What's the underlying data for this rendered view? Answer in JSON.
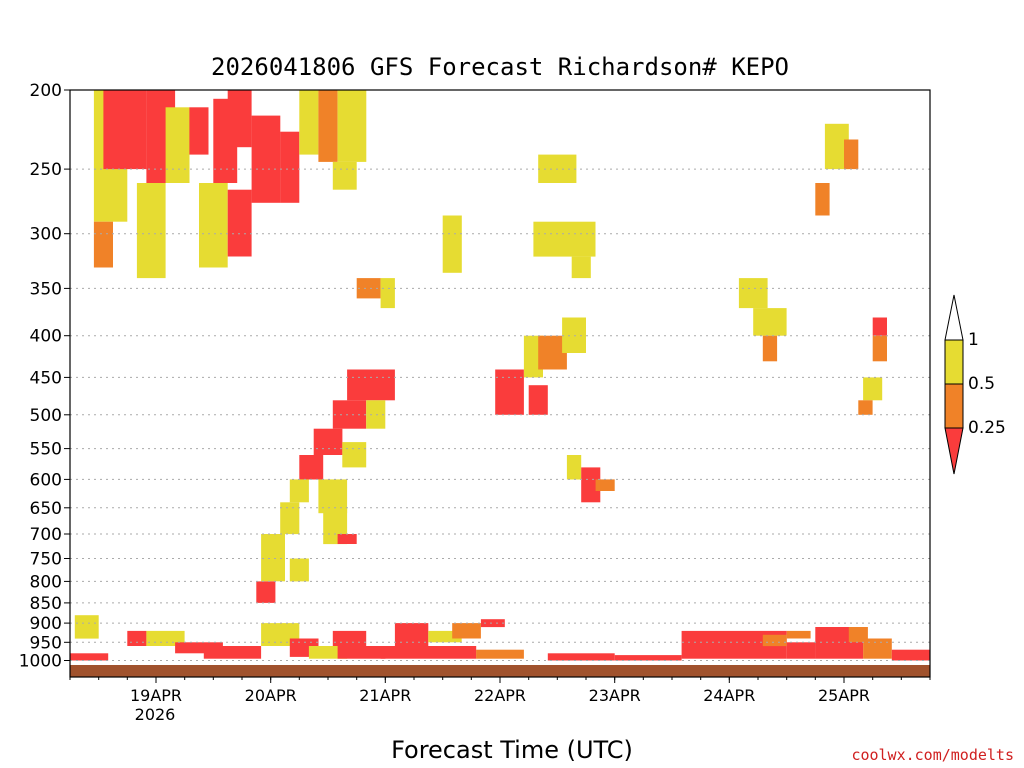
{
  "chart_data": {
    "type": "heatmap",
    "title": "2026041806 GFS Forecast Richardson# KEPO",
    "xlabel": "Forecast Time (UTC)",
    "ylabel": "",
    "x_ticks": [
      "19APR",
      "20APR",
      "21APR",
      "22APR",
      "23APR",
      "24APR",
      "25APR"
    ],
    "x_tick_hours": [
      18,
      42,
      66,
      90,
      114,
      138,
      162
    ],
    "x_year_label": "2026",
    "x_range_hours": [
      0,
      180
    ],
    "y_axis": "pressure (hPa), top down",
    "y_ticks": [
      200,
      250,
      300,
      350,
      400,
      450,
      500,
      550,
      600,
      650,
      700,
      750,
      800,
      850,
      900,
      950,
      1000
    ],
    "y_range": [
      200,
      1010
    ],
    "grid": "dotted horizontal at pressure levels",
    "colorbar": {
      "position": "right",
      "labels": [
        "1",
        "0.5",
        "0.25"
      ],
      "bins": [
        {
          "range": "0.5-1",
          "color": "#e6dc32"
        },
        {
          "range": "0.25-0.5",
          "color": "#f08228"
        },
        {
          "range": "<0.25",
          "color": "#fa3c3c"
        }
      ]
    },
    "colors": {
      "yellow": "#e6dc32",
      "orange": "#f08228",
      "red": "#fa3c3c",
      "ground": "#a0522d"
    },
    "cells": [
      {
        "t0": 5,
        "t1": 12,
        "p0": 200,
        "p1": 290,
        "c": "yellow"
      },
      {
        "t0": 5,
        "t1": 9,
        "p0": 290,
        "p1": 330,
        "c": "orange"
      },
      {
        "t0": 7,
        "t1": 16,
        "p0": 200,
        "p1": 250,
        "c": "red"
      },
      {
        "t0": 16,
        "t1": 22,
        "p0": 200,
        "p1": 260,
        "c": "red"
      },
      {
        "t0": 14,
        "t1": 20,
        "p0": 260,
        "p1": 340,
        "c": "yellow"
      },
      {
        "t0": 20,
        "t1": 25,
        "p0": 210,
        "p1": 260,
        "c": "yellow"
      },
      {
        "t0": 25,
        "t1": 29,
        "p0": 210,
        "p1": 240,
        "c": "red"
      },
      {
        "t0": 30,
        "t1": 35,
        "p0": 205,
        "p1": 260,
        "c": "red"
      },
      {
        "t0": 27,
        "t1": 33,
        "p0": 260,
        "p1": 330,
        "c": "yellow"
      },
      {
        "t0": 33,
        "t1": 38,
        "p0": 200,
        "p1": 235,
        "c": "red"
      },
      {
        "t0": 33,
        "t1": 38,
        "p0": 265,
        "p1": 320,
        "c": "red"
      },
      {
        "t0": 38,
        "t1": 44,
        "p0": 215,
        "p1": 275,
        "c": "red"
      },
      {
        "t0": 44,
        "t1": 48,
        "p0": 225,
        "p1": 275,
        "c": "red"
      },
      {
        "t0": 48,
        "t1": 52,
        "p0": 200,
        "p1": 240,
        "c": "yellow"
      },
      {
        "t0": 52,
        "t1": 56,
        "p0": 200,
        "p1": 245,
        "c": "orange"
      },
      {
        "t0": 56,
        "t1": 62,
        "p0": 200,
        "p1": 245,
        "c": "yellow"
      },
      {
        "t0": 55,
        "t1": 60,
        "p0": 245,
        "p1": 265,
        "c": "yellow"
      },
      {
        "t0": 78,
        "t1": 82,
        "p0": 285,
        "p1": 335,
        "c": "yellow"
      },
      {
        "t0": 98,
        "t1": 106,
        "p0": 240,
        "p1": 260,
        "c": "yellow"
      },
      {
        "t0": 97,
        "t1": 110,
        "p0": 290,
        "p1": 320,
        "c": "yellow"
      },
      {
        "t0": 105,
        "t1": 109,
        "p0": 320,
        "p1": 340,
        "c": "yellow"
      },
      {
        "t0": 60,
        "t1": 65,
        "p0": 340,
        "p1": 360,
        "c": "orange"
      },
      {
        "t0": 65,
        "t1": 68,
        "p0": 340,
        "p1": 370,
        "c": "yellow"
      },
      {
        "t0": 140,
        "t1": 146,
        "p0": 340,
        "p1": 370,
        "c": "yellow"
      },
      {
        "t0": 143,
        "t1": 150,
        "p0": 370,
        "p1": 400,
        "c": "yellow"
      },
      {
        "t0": 145,
        "t1": 148,
        "p0": 400,
        "p1": 430,
        "c": "orange"
      },
      {
        "t0": 158,
        "t1": 163,
        "p0": 220,
        "p1": 250,
        "c": "yellow"
      },
      {
        "t0": 162,
        "t1": 165,
        "p0": 230,
        "p1": 250,
        "c": "orange"
      },
      {
        "t0": 156,
        "t1": 159,
        "p0": 260,
        "p1": 285,
        "c": "orange"
      },
      {
        "t0": 168,
        "t1": 171,
        "p0": 380,
        "p1": 400,
        "c": "red"
      },
      {
        "t0": 168,
        "t1": 171,
        "p0": 400,
        "p1": 430,
        "c": "orange"
      },
      {
        "t0": 166,
        "t1": 170,
        "p0": 450,
        "p1": 480,
        "c": "yellow"
      },
      {
        "t0": 165,
        "t1": 168,
        "p0": 480,
        "p1": 500,
        "c": "orange"
      },
      {
        "t0": 58,
        "t1": 68,
        "p0": 440,
        "p1": 480,
        "c": "red"
      },
      {
        "t0": 55,
        "t1": 62,
        "p0": 480,
        "p1": 520,
        "c": "red"
      },
      {
        "t0": 62,
        "t1": 66,
        "p0": 480,
        "p1": 520,
        "c": "yellow"
      },
      {
        "t0": 51,
        "t1": 57,
        "p0": 520,
        "p1": 560,
        "c": "red"
      },
      {
        "t0": 57,
        "t1": 62,
        "p0": 540,
        "p1": 580,
        "c": "yellow"
      },
      {
        "t0": 48,
        "t1": 53,
        "p0": 560,
        "p1": 600,
        "c": "red"
      },
      {
        "t0": 46,
        "t1": 50,
        "p0": 600,
        "p1": 640,
        "c": "yellow"
      },
      {
        "t0": 52,
        "t1": 58,
        "p0": 600,
        "p1": 660,
        "c": "yellow"
      },
      {
        "t0": 44,
        "t1": 48,
        "p0": 640,
        "p1": 700,
        "c": "yellow"
      },
      {
        "t0": 40,
        "t1": 45,
        "p0": 700,
        "p1": 800,
        "c": "yellow"
      },
      {
        "t0": 39,
        "t1": 43,
        "p0": 800,
        "p1": 850,
        "c": "red"
      },
      {
        "t0": 46,
        "t1": 50,
        "p0": 750,
        "p1": 800,
        "c": "yellow"
      },
      {
        "t0": 53,
        "t1": 58,
        "p0": 650,
        "p1": 720,
        "c": "yellow"
      },
      {
        "t0": 56,
        "t1": 60,
        "p0": 700,
        "p1": 720,
        "c": "red"
      },
      {
        "t0": 89,
        "t1": 95,
        "p0": 440,
        "p1": 500,
        "c": "red"
      },
      {
        "t0": 95,
        "t1": 99,
        "p0": 400,
        "p1": 450,
        "c": "yellow"
      },
      {
        "t0": 98,
        "t1": 104,
        "p0": 400,
        "p1": 440,
        "c": "orange"
      },
      {
        "t0": 96,
        "t1": 100,
        "p0": 460,
        "p1": 500,
        "c": "red"
      },
      {
        "t0": 103,
        "t1": 108,
        "p0": 380,
        "p1": 420,
        "c": "yellow"
      },
      {
        "t0": 104,
        "t1": 107,
        "p0": 560,
        "p1": 600,
        "c": "yellow"
      },
      {
        "t0": 107,
        "t1": 111,
        "p0": 580,
        "p1": 640,
        "c": "red"
      },
      {
        "t0": 110,
        "t1": 114,
        "p0": 600,
        "p1": 620,
        "c": "orange"
      },
      {
        "t0": 1,
        "t1": 6,
        "p0": 880,
        "p1": 940,
        "c": "yellow"
      },
      {
        "t0": 0,
        "t1": 8,
        "p0": 980,
        "p1": 1000,
        "c": "red"
      },
      {
        "t0": 12,
        "t1": 16,
        "p0": 920,
        "p1": 960,
        "c": "red"
      },
      {
        "t0": 16,
        "t1": 24,
        "p0": 920,
        "p1": 960,
        "c": "yellow"
      },
      {
        "t0": 22,
        "t1": 32,
        "p0": 950,
        "p1": 980,
        "c": "red"
      },
      {
        "t0": 28,
        "t1": 40,
        "p0": 960,
        "p1": 995,
        "c": "red"
      },
      {
        "t0": 40,
        "t1": 48,
        "p0": 900,
        "p1": 960,
        "c": "yellow"
      },
      {
        "t0": 46,
        "t1": 52,
        "p0": 940,
        "p1": 990,
        "c": "red"
      },
      {
        "t0": 50,
        "t1": 58,
        "p0": 960,
        "p1": 995,
        "c": "yellow"
      },
      {
        "t0": 55,
        "t1": 62,
        "p0": 920,
        "p1": 960,
        "c": "red"
      },
      {
        "t0": 56,
        "t1": 66,
        "p0": 960,
        "p1": 995,
        "c": "red"
      },
      {
        "t0": 68,
        "t1": 75,
        "p0": 900,
        "p1": 960,
        "c": "red"
      },
      {
        "t0": 75,
        "t1": 82,
        "p0": 920,
        "p1": 950,
        "c": "yellow"
      },
      {
        "t0": 80,
        "t1": 86,
        "p0": 900,
        "p1": 940,
        "c": "orange"
      },
      {
        "t0": 86,
        "t1": 91,
        "p0": 890,
        "p1": 910,
        "c": "red"
      },
      {
        "t0": 65,
        "t1": 85,
        "p0": 960,
        "p1": 995,
        "c": "red"
      },
      {
        "t0": 85,
        "t1": 95,
        "p0": 970,
        "p1": 995,
        "c": "orange"
      },
      {
        "t0": 100,
        "t1": 114,
        "p0": 980,
        "p1": 1000,
        "c": "red"
      },
      {
        "t0": 114,
        "t1": 128,
        "p0": 985,
        "p1": 1000,
        "c": "red"
      },
      {
        "t0": 128,
        "t1": 150,
        "p0": 920,
        "p1": 995,
        "c": "red"
      },
      {
        "t0": 145,
        "t1": 150,
        "p0": 930,
        "p1": 960,
        "c": "orange"
      },
      {
        "t0": 150,
        "t1": 156,
        "p0": 950,
        "p1": 995,
        "c": "red"
      },
      {
        "t0": 150,
        "t1": 155,
        "p0": 920,
        "p1": 940,
        "c": "orange"
      },
      {
        "t0": 156,
        "t1": 166,
        "p0": 910,
        "p1": 995,
        "c": "red"
      },
      {
        "t0": 163,
        "t1": 167,
        "p0": 910,
        "p1": 950,
        "c": "orange"
      },
      {
        "t0": 166,
        "t1": 172,
        "p0": 940,
        "p1": 995,
        "c": "orange"
      },
      {
        "t0": 172,
        "t1": 180,
        "p0": 970,
        "p1": 1000,
        "c": "red"
      }
    ]
  },
  "credit": "coolwx.com/modelts"
}
